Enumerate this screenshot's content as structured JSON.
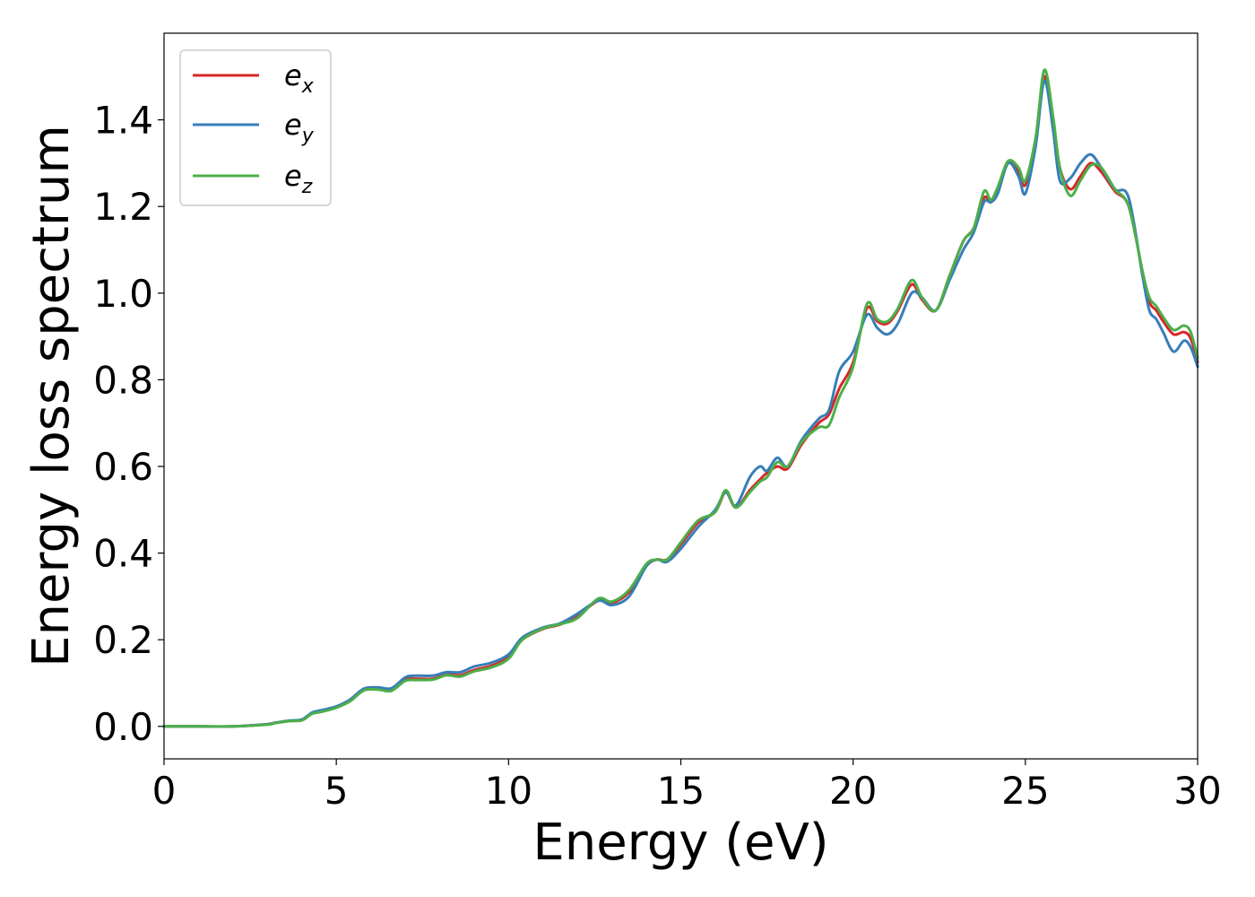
{
  "chart_data": {
    "type": "line",
    "title": "",
    "xlabel": "Energy (eV)",
    "ylabel": "Energy loss spectrum",
    "xlim": [
      0,
      30
    ],
    "ylim": [
      -0.075,
      1.6
    ],
    "xticks": [
      0,
      5,
      10,
      15,
      20,
      25,
      30
    ],
    "xtick_labels": [
      "0",
      "5",
      "10",
      "15",
      "20",
      "25",
      "30"
    ],
    "yticks": [
      0.0,
      0.2,
      0.4,
      0.6,
      0.8,
      1.0,
      1.2,
      1.4
    ],
    "ytick_labels": [
      "0.0",
      "0.2",
      "0.4",
      "0.6",
      "0.8",
      "1.0",
      "1.2",
      "1.4"
    ],
    "grid": false,
    "legend_position": "top-left",
    "series": [
      {
        "name": "e",
        "subscript": "x",
        "color": "#d62728",
        "x": [
          0,
          1,
          2,
          3,
          3.2,
          3.6,
          4.0,
          4.3,
          4.6,
          5.0,
          5.4,
          5.8,
          6.2,
          6.6,
          7.0,
          7.3,
          7.8,
          8.2,
          8.6,
          9.0,
          9.5,
          10.0,
          10.4,
          11.0,
          11.5,
          12.0,
          12.6,
          13.0,
          13.5,
          14.0,
          14.3,
          14.6,
          15.0,
          15.5,
          16.0,
          16.3,
          16.6,
          17.0,
          17.3,
          17.5,
          17.8,
          18.1,
          18.5,
          19.0,
          19.3,
          19.6,
          20.0,
          20.4,
          20.7,
          21.0,
          21.3,
          21.7,
          22.0,
          22.4,
          22.8,
          23.2,
          23.5,
          23.8,
          24.0,
          24.2,
          24.5,
          24.8,
          25.0,
          25.3,
          25.55,
          25.8,
          26.0,
          26.3,
          26.6,
          26.9,
          27.2,
          27.6,
          28.0,
          28.4,
          28.6,
          28.8,
          29.0,
          29.3,
          29.6,
          29.8,
          30.0
        ],
        "y": [
          0.0,
          0.0,
          0.0,
          0.005,
          0.008,
          0.012,
          0.015,
          0.03,
          0.036,
          0.045,
          0.06,
          0.085,
          0.087,
          0.085,
          0.108,
          0.11,
          0.11,
          0.12,
          0.118,
          0.13,
          0.14,
          0.16,
          0.2,
          0.225,
          0.235,
          0.255,
          0.29,
          0.285,
          0.31,
          0.37,
          0.385,
          0.385,
          0.42,
          0.47,
          0.495,
          0.54,
          0.505,
          0.545,
          0.57,
          0.585,
          0.6,
          0.595,
          0.65,
          0.7,
          0.72,
          0.78,
          0.84,
          0.965,
          0.935,
          0.93,
          0.96,
          1.02,
          0.985,
          0.96,
          1.04,
          1.12,
          1.15,
          1.22,
          1.21,
          1.24,
          1.3,
          1.28,
          1.25,
          1.35,
          1.5,
          1.4,
          1.29,
          1.24,
          1.27,
          1.3,
          1.28,
          1.235,
          1.2,
          1.05,
          0.98,
          0.96,
          0.935,
          0.905,
          0.91,
          0.895,
          0.84
        ]
      },
      {
        "name": "e",
        "subscript": "y",
        "color": "#377eb8",
        "x": [
          0,
          1,
          2,
          3,
          3.2,
          3.6,
          4.0,
          4.3,
          4.6,
          5.0,
          5.4,
          5.8,
          6.2,
          6.6,
          7.0,
          7.3,
          7.8,
          8.2,
          8.6,
          9.0,
          9.5,
          10.0,
          10.4,
          11.0,
          11.5,
          12.0,
          12.6,
          13.0,
          13.5,
          14.0,
          14.3,
          14.6,
          15.0,
          15.5,
          16.0,
          16.3,
          16.6,
          17.0,
          17.3,
          17.5,
          17.8,
          18.1,
          18.5,
          19.0,
          19.3,
          19.6,
          20.0,
          20.4,
          20.7,
          21.0,
          21.3,
          21.7,
          22.0,
          22.4,
          22.8,
          23.2,
          23.5,
          23.8,
          24.0,
          24.2,
          24.5,
          24.8,
          25.0,
          25.3,
          25.55,
          25.8,
          26.0,
          26.3,
          26.6,
          26.9,
          27.2,
          27.6,
          28.0,
          28.4,
          28.6,
          28.8,
          29.0,
          29.3,
          29.6,
          29.8,
          30.0
        ],
        "y": [
          0.0,
          0.0,
          0.0,
          0.005,
          0.008,
          0.013,
          0.016,
          0.032,
          0.038,
          0.046,
          0.062,
          0.087,
          0.09,
          0.088,
          0.113,
          0.117,
          0.117,
          0.125,
          0.125,
          0.138,
          0.147,
          0.166,
          0.205,
          0.228,
          0.238,
          0.26,
          0.29,
          0.28,
          0.3,
          0.37,
          0.385,
          0.38,
          0.41,
          0.46,
          0.5,
          0.54,
          0.51,
          0.575,
          0.6,
          0.59,
          0.62,
          0.6,
          0.66,
          0.71,
          0.73,
          0.82,
          0.865,
          0.95,
          0.92,
          0.905,
          0.93,
          1.0,
          0.99,
          0.96,
          1.03,
          1.1,
          1.14,
          1.21,
          1.21,
          1.23,
          1.3,
          1.27,
          1.23,
          1.34,
          1.49,
          1.38,
          1.26,
          1.265,
          1.3,
          1.32,
          1.29,
          1.24,
          1.22,
          1.04,
          0.96,
          0.94,
          0.91,
          0.865,
          0.89,
          0.875,
          0.83
        ]
      },
      {
        "name": "e",
        "subscript": "z",
        "color": "#4daf4a",
        "x": [
          0,
          1,
          2,
          3,
          3.2,
          3.6,
          4.0,
          4.3,
          4.6,
          5.0,
          5.4,
          5.8,
          6.2,
          6.6,
          7.0,
          7.3,
          7.8,
          8.2,
          8.6,
          9.0,
          9.5,
          10.0,
          10.4,
          11.0,
          11.5,
          12.0,
          12.6,
          13.0,
          13.5,
          14.0,
          14.3,
          14.6,
          15.0,
          15.5,
          16.0,
          16.3,
          16.6,
          17.0,
          17.3,
          17.5,
          17.8,
          18.1,
          18.5,
          19.0,
          19.3,
          19.6,
          20.0,
          20.4,
          20.7,
          21.0,
          21.3,
          21.7,
          22.0,
          22.4,
          22.8,
          23.2,
          23.5,
          23.8,
          24.0,
          24.2,
          24.5,
          24.8,
          25.0,
          25.3,
          25.55,
          25.8,
          26.0,
          26.3,
          26.6,
          26.9,
          27.2,
          27.6,
          28.0,
          28.4,
          28.6,
          28.8,
          29.0,
          29.3,
          29.6,
          29.8,
          30.0
        ],
        "y": [
          0.0,
          0.0,
          0.0,
          0.004,
          0.007,
          0.012,
          0.014,
          0.029,
          0.034,
          0.043,
          0.058,
          0.083,
          0.085,
          0.082,
          0.105,
          0.107,
          0.108,
          0.118,
          0.115,
          0.127,
          0.136,
          0.156,
          0.2,
          0.226,
          0.236,
          0.25,
          0.295,
          0.288,
          0.315,
          0.375,
          0.385,
          0.385,
          0.425,
          0.475,
          0.495,
          0.545,
          0.505,
          0.54,
          0.565,
          0.575,
          0.61,
          0.6,
          0.655,
          0.69,
          0.695,
          0.76,
          0.83,
          0.975,
          0.94,
          0.935,
          0.965,
          1.03,
          0.99,
          0.96,
          1.04,
          1.12,
          1.15,
          1.235,
          1.215,
          1.245,
          1.305,
          1.29,
          1.26,
          1.36,
          1.515,
          1.41,
          1.29,
          1.225,
          1.26,
          1.295,
          1.29,
          1.24,
          1.2,
          1.05,
          0.99,
          0.97,
          0.945,
          0.915,
          0.925,
          0.91,
          0.85
        ]
      }
    ]
  }
}
